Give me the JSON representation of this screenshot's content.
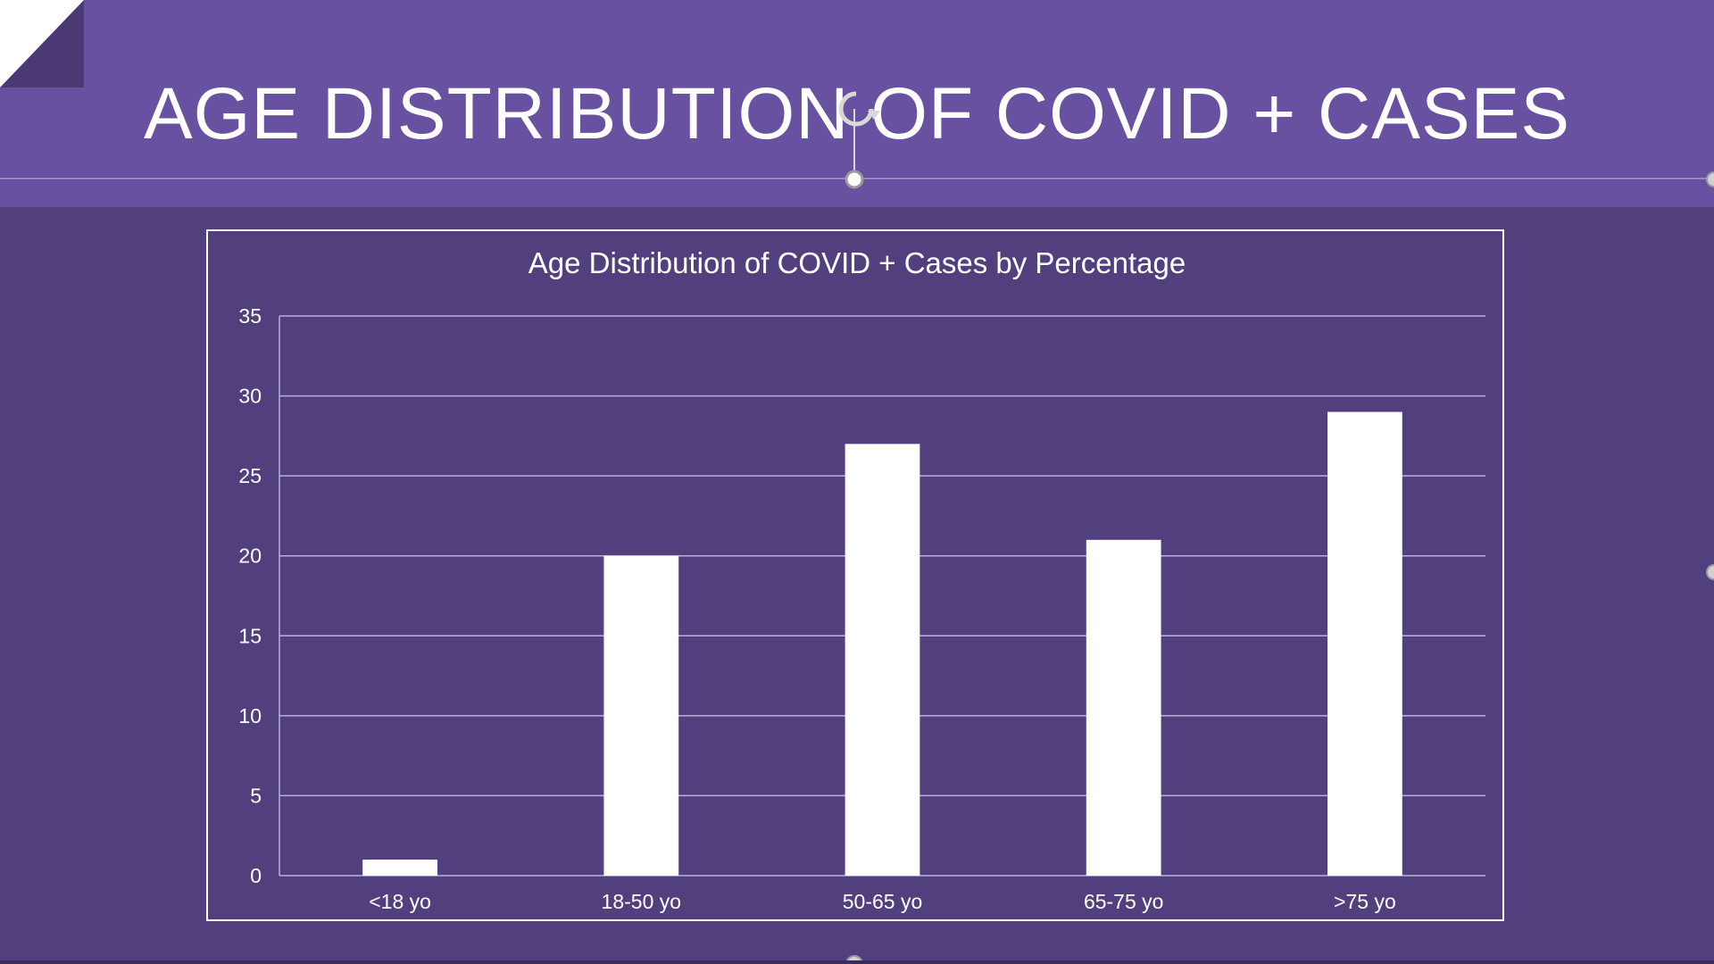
{
  "slide": {
    "title": "AGE DISTRIBUTION OF COVID + CASES",
    "colors": {
      "background": "#523f7e",
      "title_band": "#6951a1",
      "text": "#ffffff",
      "bars": "#ffffff",
      "gridlines": "#b8b0e0"
    }
  },
  "chart_data": {
    "type": "bar",
    "title": "Age Distribution of COVID + Cases by Percentage",
    "xlabel": "",
    "ylabel": "",
    "categories": [
      "<18 yo",
      "18-50 yo",
      "50-65 yo",
      "65-75 yo",
      ">75 yo"
    ],
    "values": [
      1,
      20,
      27,
      21,
      29
    ],
    "ylim": [
      0,
      35
    ],
    "yticks": [
      0,
      5,
      10,
      15,
      20,
      25,
      30,
      35
    ],
    "grid": true,
    "legend": "none"
  }
}
